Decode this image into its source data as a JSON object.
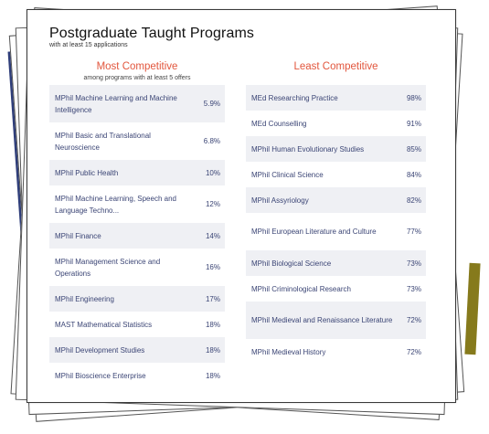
{
  "title": "Postgraduate Taught Programs",
  "subtitle": "with at least 15 applications",
  "most": {
    "heading": "Most Competitive",
    "subheading": "among programs with at least 5 offers",
    "items": [
      {
        "name": "MPhil Machine Learning and Machine Intelligence",
        "value": "5.9%"
      },
      {
        "name": "MPhil Basic and Translational Neuroscience",
        "value": "6.8%"
      },
      {
        "name": "MPhil Public Health",
        "value": "10%"
      },
      {
        "name": "MPhil Machine Learning, Speech and Language Techno...",
        "value": "12%"
      },
      {
        "name": "MPhil Finance",
        "value": "14%"
      },
      {
        "name": "MPhil Management Science and Operations",
        "value": "16%"
      },
      {
        "name": "MPhil Engineering",
        "value": "17%"
      },
      {
        "name": "MAST Mathematical Statistics",
        "value": "18%"
      },
      {
        "name": "MPhil Development Studies",
        "value": "18%"
      },
      {
        "name": "MPhil Bioscience Enterprise",
        "value": "18%"
      }
    ]
  },
  "least": {
    "heading": "Least Competitive",
    "items": [
      {
        "name": "MEd Researching Practice",
        "value": "98%"
      },
      {
        "name": "MEd Counselling",
        "value": "91%"
      },
      {
        "name": "MPhil Human Evolutionary Studies",
        "value": "85%"
      },
      {
        "name": "MPhil Clinical Science",
        "value": "84%"
      },
      {
        "name": "MPhil Assyriology",
        "value": "82%"
      },
      {
        "name": "MPhil European Literature and Culture",
        "value": "77%"
      },
      {
        "name": "MPhil Biological Science",
        "value": "73%"
      },
      {
        "name": "MPhil Criminological Research",
        "value": "73%"
      },
      {
        "name": "MPhil Medieval and Renaissance Literature",
        "value": "72%"
      },
      {
        "name": "MPhil Medieval History",
        "value": "72%"
      }
    ]
  },
  "colors": {
    "heading": "#e2563d",
    "row_text": "#3b4575",
    "row_shade": "#eff0f4"
  }
}
